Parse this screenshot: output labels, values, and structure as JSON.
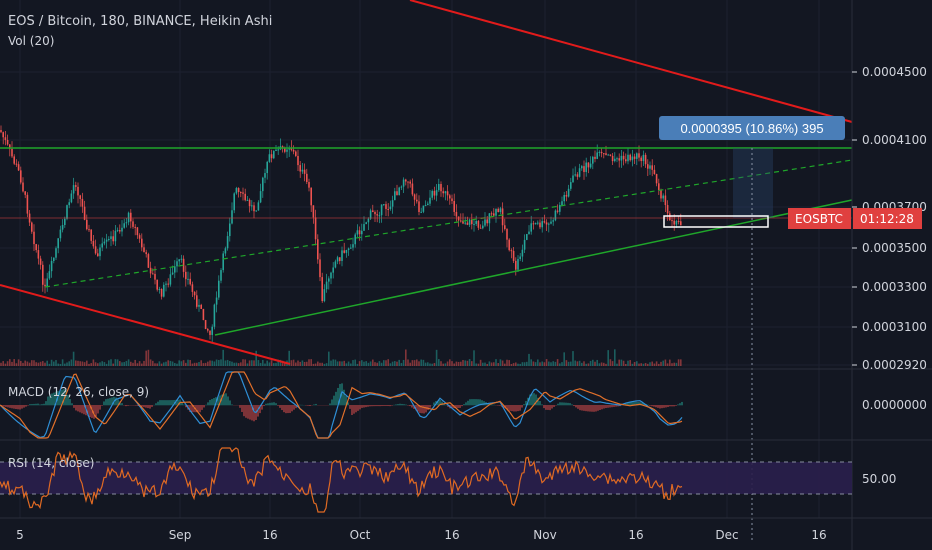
{
  "title": "EOS / Bitcoin, 180, BINANCE, Heikin Ashi",
  "vol_label": "Vol (20)",
  "macd_label": "MACD (12, 26, close, 9)",
  "rsi_label": "RSI (14, close)",
  "measure_label": "0.0000395 (10.86%) 395",
  "symbol_badge": "EOSBTC",
  "countdown": "01:12:28",
  "colors": {
    "background": "#131722",
    "up": "#26a69a",
    "down": "#ef5350",
    "red_line": "#e21b1b",
    "green_line": "#1fa62a",
    "measure": "#4a7eb8",
    "price_badge": "#e0403f",
    "rsi_fill": "#2a1f4d",
    "rsi_line": "#e06a23",
    "macd_line": "#2f8fd6",
    "signal_line": "#e2702a"
  },
  "chart_data": {
    "type": "candlestick",
    "symbol": "EOS / Bitcoin",
    "interval": "180",
    "exchange": "BINANCE",
    "style": "Heikin Ashi",
    "yaxis_ticks": [
      "0.0004500",
      "0.0004100",
      "0.0003700",
      "0.0003500",
      "0.0003300",
      "0.0003100",
      "0.0002920"
    ],
    "xaxis_ticks": [
      "5",
      "Sep",
      "16",
      "Oct",
      "16",
      "Nov",
      "16",
      "Dec",
      "16"
    ],
    "macd_ticks": [
      "0.0000000"
    ],
    "rsi_ticks": [
      "50.00"
    ],
    "current_price_label": "EOSBTC 01:12:28",
    "measurement": "0.0000395 (10.86%) 395"
  }
}
